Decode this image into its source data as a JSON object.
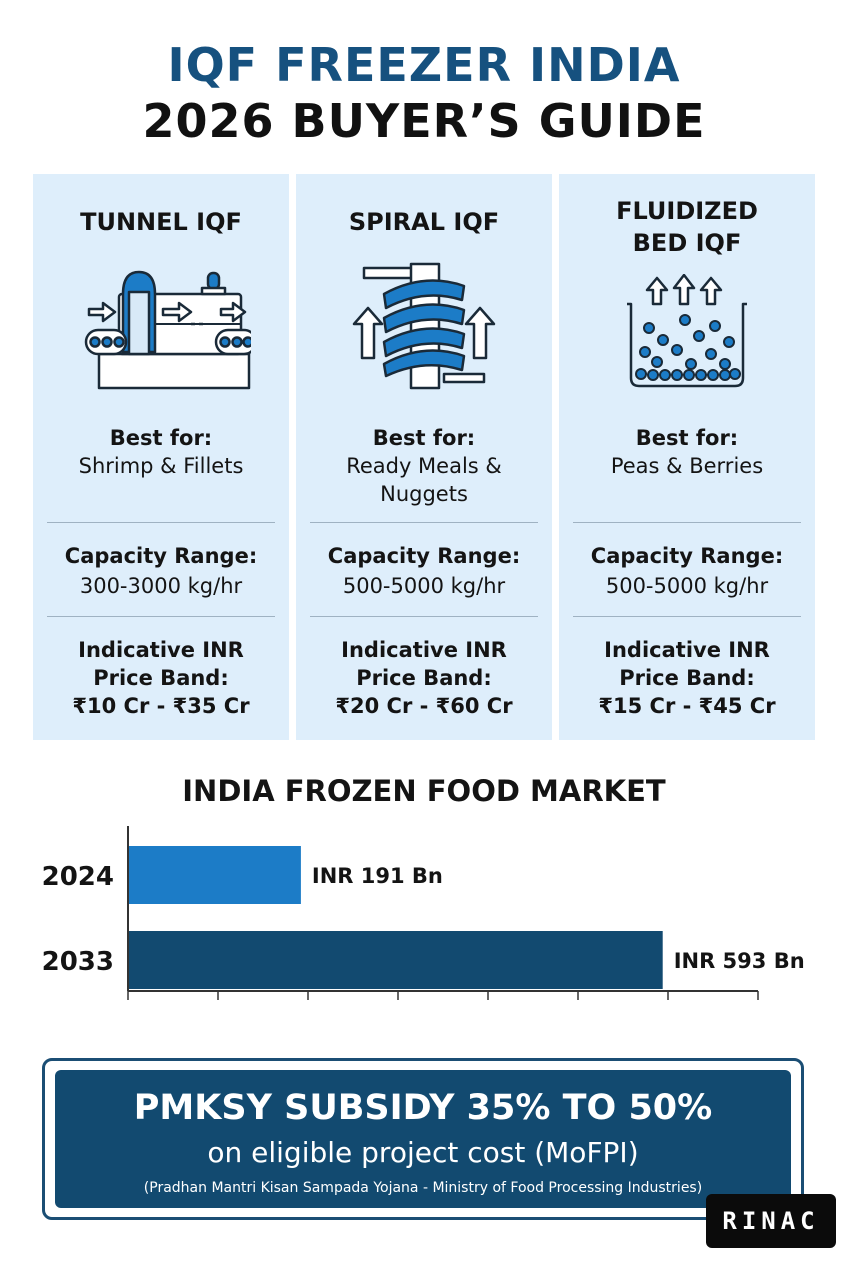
{
  "header": {
    "title_line1": "IQF FREEZER INDIA",
    "title_line2": "2026 BUYER’S GUIDE"
  },
  "cards": [
    {
      "name_line1": "TUNNEL IQF",
      "name_line2": "",
      "best_for_label": "Best for:",
      "best_for_line1": "Shrimp & Fillets",
      "best_for_line2": "",
      "capacity_label": "Capacity Range:",
      "capacity_value": "300-3000 kg/hr",
      "price_label_line1": "Indicative INR",
      "price_label_line2": "Price Band:",
      "price_value": "₹10 Cr - ₹35 Cr",
      "icon": "tunnel-freezer-icon"
    },
    {
      "name_line1": "SPIRAL IQF",
      "name_line2": "",
      "best_for_label": "Best for:",
      "best_for_line1": "Ready Meals &",
      "best_for_line2": "Nuggets",
      "capacity_label": "Capacity Range:",
      "capacity_value": "500-5000 kg/hr",
      "price_label_line1": "Indicative INR",
      "price_label_line2": "Price Band:",
      "price_value": "₹20 Cr - ₹60 Cr",
      "icon": "spiral-freezer-icon"
    },
    {
      "name_line1": "FLUIDIZED",
      "name_line2": "BED IQF",
      "best_for_label": "Best for:",
      "best_for_line1": "Peas & Berries",
      "best_for_line2": "",
      "capacity_label": "Capacity Range:",
      "capacity_value": "500-5000 kg/hr",
      "price_label_line1": "Indicative INR",
      "price_label_line2": "Price Band:",
      "price_value": "₹15 Cr - ₹45 Cr",
      "icon": "fluidized-bed-icon"
    }
  ],
  "chart_data": {
    "type": "bar",
    "orientation": "horizontal",
    "title": "INDIA FROZEN FOOD MARKET",
    "categories": [
      "2024",
      "2033"
    ],
    "values": [
      191,
      593
    ],
    "value_labels": [
      "INR 191 Bn",
      "INR 593 Bn"
    ],
    "unit": "INR Bn",
    "xlim": [
      0,
      700
    ],
    "x_ticks": [
      0,
      100,
      200,
      300,
      400,
      500,
      600,
      700
    ],
    "bar_colors": [
      "#1c7cc7",
      "#124a70"
    ],
    "grid": false
  },
  "banner": {
    "headline": "PMKSY SUBSIDY 35% TO 50%",
    "subline": "on eligible project cost (MoFPI)",
    "note": "(Pradhan Mantri Kisan Sampada Yojana - Ministry of Food Processing Industries)"
  },
  "logo": {
    "text": "RINAC"
  },
  "colors": {
    "title_blue": "#16517f",
    "card_bg": "#deeefb",
    "accent_blue": "#1c7cc7",
    "navy": "#124a70"
  }
}
